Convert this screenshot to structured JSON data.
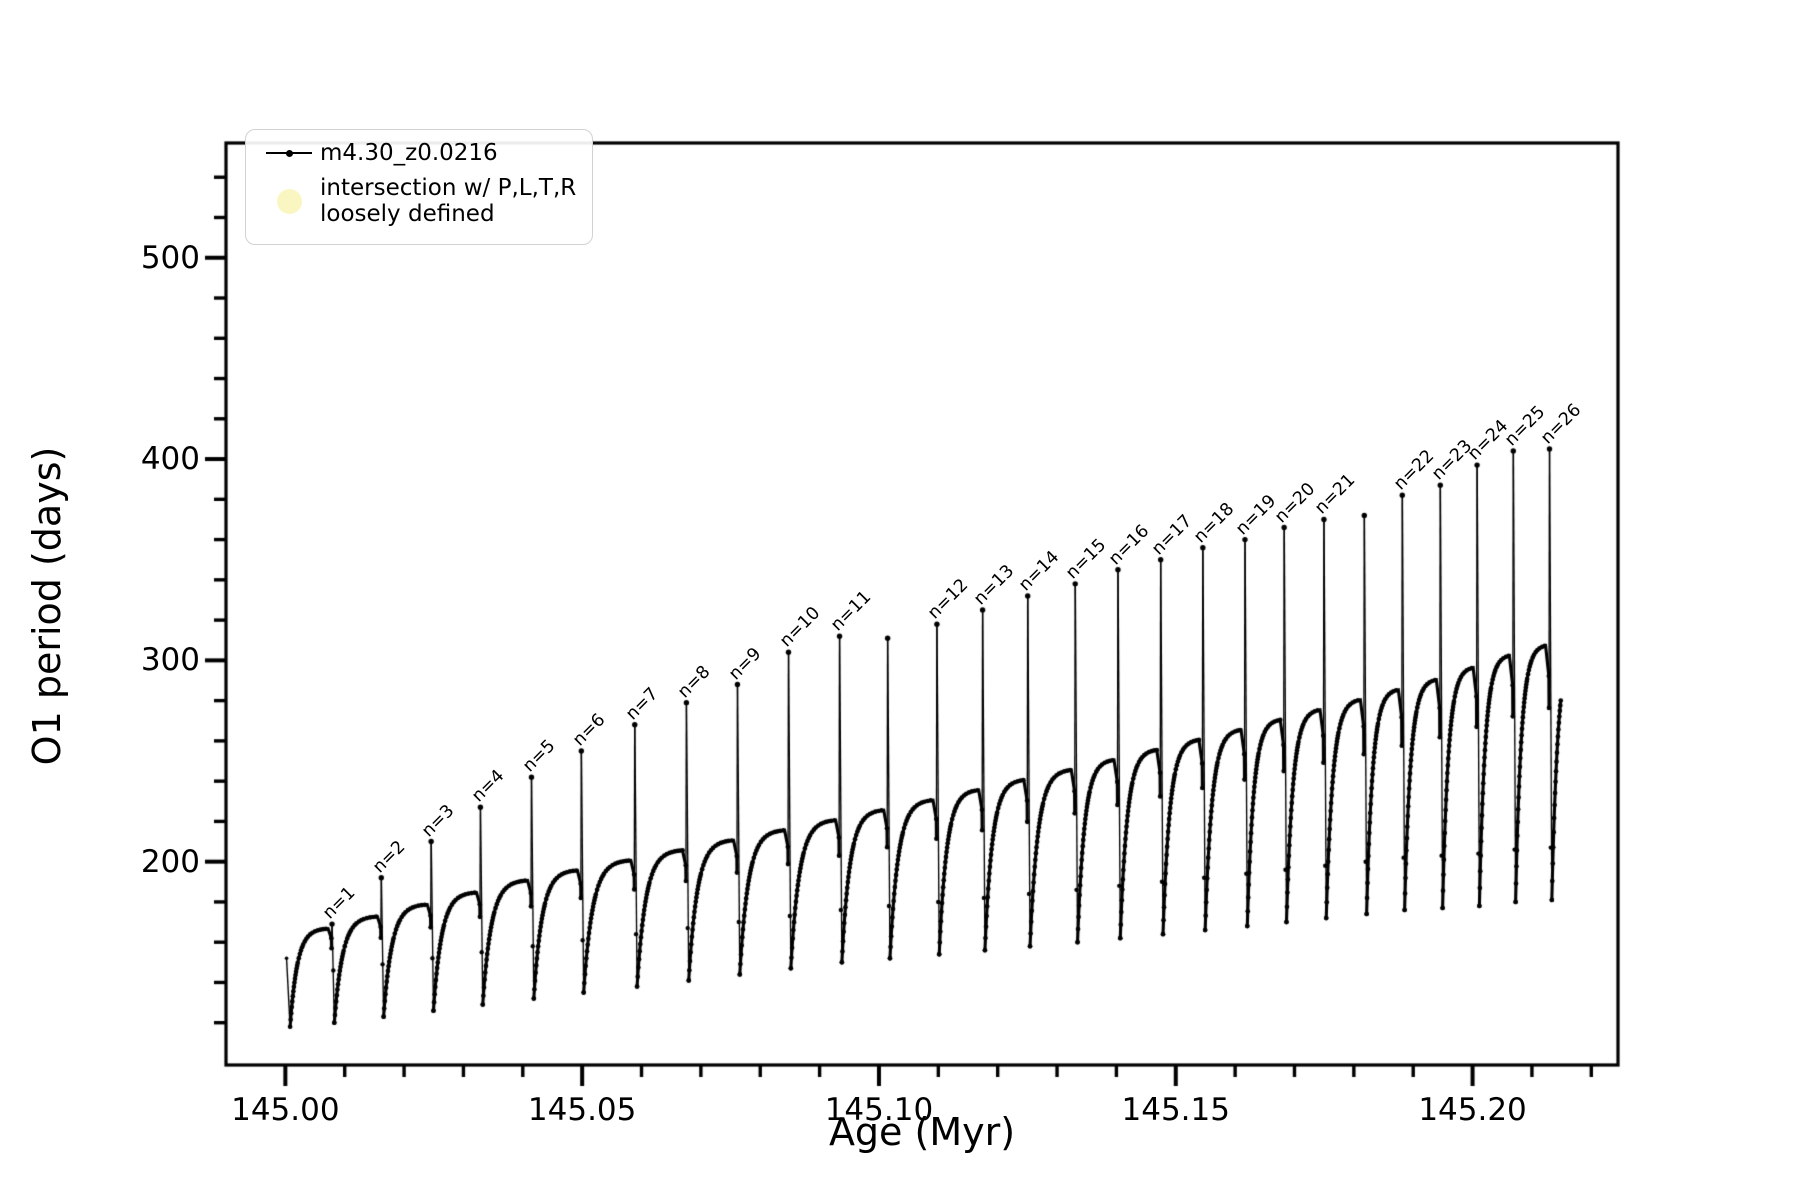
{
  "chart_data": {
    "type": "line",
    "title": "",
    "xlabel": "Age (Myr)",
    "ylabel": "O1 period (days)",
    "xlim": [
      144.99,
      145.2245
    ],
    "ylim": [
      99,
      557
    ],
    "x_major_ticks": [
      145.0,
      145.05,
      145.1,
      145.15,
      145.2
    ],
    "x_tick_labels": [
      "145.00",
      "145.05",
      "145.10",
      "145.15",
      "145.20"
    ],
    "x_minor_step": 0.01,
    "y_major_ticks": [
      200,
      300,
      400,
      500
    ],
    "y_tick_labels": [
      "200",
      "300",
      "400",
      "500"
    ],
    "y_minor_step": 20,
    "grid": false,
    "legend_position": "upper left",
    "series_color": "#000000",
    "legend": {
      "entry1": "m4.30_z0.0216",
      "entry2_line1": "intersection w/ P,L,T,R",
      "entry2_line2": "loosely defined",
      "entry2_marker_color": "#faf6c2"
    },
    "lead_in": {
      "t_start": 145.0002,
      "v_start": 152,
      "t_min": 145.0008,
      "v_min": 118
    },
    "pulses": [
      {
        "label": "n=1",
        "t": 145.0079,
        "peak": 169,
        "hump": 167,
        "min_after": 120
      },
      {
        "label": "n=2",
        "t": 145.0162,
        "peak": 192,
        "hump": 173,
        "min_after": 123
      },
      {
        "label": "n=3",
        "t": 145.0246,
        "peak": 210,
        "hump": 179,
        "min_after": 126
      },
      {
        "label": "n=4",
        "t": 145.0329,
        "peak": 227,
        "hump": 185,
        "min_after": 129
      },
      {
        "label": "n=5",
        "t": 145.0415,
        "peak": 242,
        "hump": 191,
        "min_after": 132
      },
      {
        "label": "n=6",
        "t": 145.0499,
        "peak": 255,
        "hump": 196,
        "min_after": 135
      },
      {
        "label": "n=7",
        "t": 145.0589,
        "peak": 268,
        "hump": 201,
        "min_after": 138
      },
      {
        "label": "n=8",
        "t": 145.0676,
        "peak": 279,
        "hump": 206,
        "min_after": 141
      },
      {
        "label": "n=9",
        "t": 145.0762,
        "peak": 288,
        "hump": 211,
        "min_after": 144
      },
      {
        "label": "n=10",
        "t": 145.0848,
        "peak": 304,
        "hump": 216,
        "min_after": 147
      },
      {
        "label": "n=11",
        "t": 145.0934,
        "peak": 312,
        "hump": 221,
        "min_after": 150
      },
      {
        "label": null,
        "t": 145.1015,
        "peak": 311,
        "hump": 226,
        "min_after": 152
      },
      {
        "label": "n=12",
        "t": 145.1098,
        "peak": 318,
        "hump": 231,
        "min_after": 154
      },
      {
        "label": "n=13",
        "t": 145.1175,
        "peak": 325,
        "hump": 236,
        "min_after": 156
      },
      {
        "label": "n=14",
        "t": 145.1251,
        "peak": 332,
        "hump": 241,
        "min_after": 158
      },
      {
        "label": "n=15",
        "t": 145.1331,
        "peak": 338,
        "hump": 246,
        "min_after": 160
      },
      {
        "label": "n=16",
        "t": 145.1403,
        "peak": 345,
        "hump": 251,
        "min_after": 162
      },
      {
        "label": "n=17",
        "t": 145.1475,
        "peak": 350,
        "hump": 256,
        "min_after": 164
      },
      {
        "label": "n=18",
        "t": 145.1546,
        "peak": 356,
        "hump": 261,
        "min_after": 166
      },
      {
        "label": "n=19",
        "t": 145.1617,
        "peak": 360,
        "hump": 266,
        "min_after": 168
      },
      {
        "label": "n=20",
        "t": 145.1683,
        "peak": 366,
        "hump": 271,
        "min_after": 170
      },
      {
        "label": "n=21",
        "t": 145.175,
        "peak": 370,
        "hump": 276,
        "min_after": 172
      },
      {
        "label": null,
        "t": 145.1818,
        "peak": 372,
        "hump": 281,
        "min_after": 174
      },
      {
        "label": "n=22",
        "t": 145.1882,
        "peak": 382,
        "hump": 286,
        "min_after": 176
      },
      {
        "label": "n=23",
        "t": 145.1946,
        "peak": 387,
        "hump": 291,
        "min_after": 177
      },
      {
        "label": "n=24",
        "t": 145.2008,
        "peak": 397,
        "hump": 297,
        "min_after": 178
      },
      {
        "label": "n=25",
        "t": 145.2069,
        "peak": 404,
        "hump": 303,
        "min_after": 180
      },
      {
        "label": "n=26",
        "t": 145.213,
        "peak": 405,
        "hump": 308,
        "min_after": 181
      }
    ],
    "tail": {
      "hump": 312,
      "t_hump": 145.2196,
      "t_end": 145.2149,
      "v_end": 274
    }
  }
}
